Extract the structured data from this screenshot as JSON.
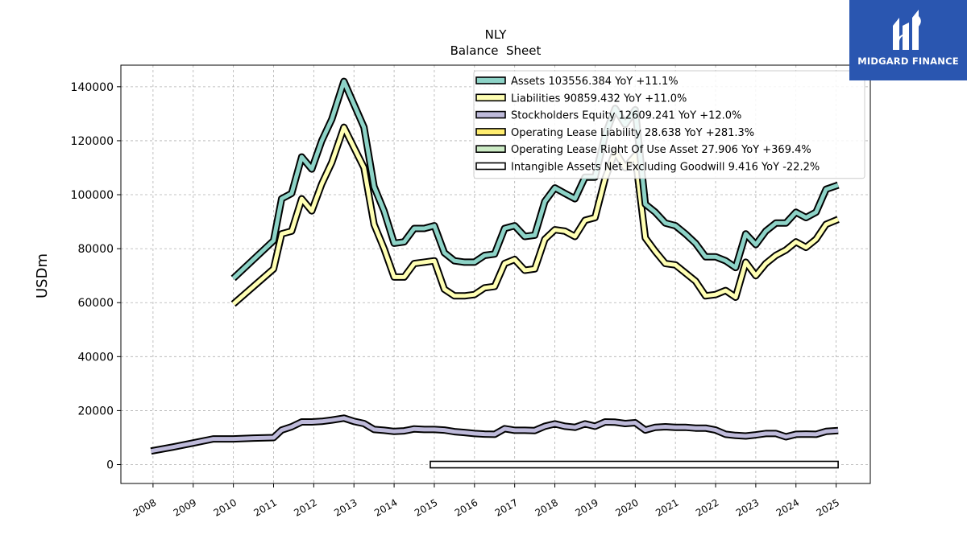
{
  "chart_data": {
    "type": "line",
    "title": "NLY",
    "subtitle": "Balance  Sheet",
    "xlabel": "",
    "ylabel": "USDm",
    "xlim": [
      2007.2,
      2025.85
    ],
    "ylim": [
      -7000,
      148000
    ],
    "grid": true,
    "legend_position": "top-right",
    "y_ticks": [
      0,
      20000,
      40000,
      60000,
      80000,
      100000,
      120000,
      140000
    ],
    "x_ticks": [
      "2008",
      "2009",
      "2010",
      "2011",
      "2012",
      "2013",
      "2014",
      "2015",
      "2016",
      "2017",
      "2018",
      "2019",
      "2020",
      "2021",
      "2022",
      "2023",
      "2024",
      "2025"
    ],
    "series": [
      {
        "name": "Assets  103556.384 YoY +11.1%",
        "color": "#8dd3c7",
        "x": [
          2010.0,
          2011.0,
          2011.2,
          2011.45,
          2011.7,
          2011.95,
          2012.2,
          2012.45,
          2012.75,
          2013.25,
          2013.5,
          2013.75,
          2014.0,
          2014.25,
          2014.5,
          2014.75,
          2015.0,
          2015.25,
          2015.5,
          2015.75,
          2016.0,
          2016.25,
          2016.5,
          2016.75,
          2017.0,
          2017.25,
          2017.5,
          2017.75,
          2018.0,
          2018.25,
          2018.5,
          2018.75,
          2019.0,
          2019.25,
          2019.5,
          2019.75,
          2020.0,
          2020.25,
          2020.5,
          2020.75,
          2021.0,
          2021.25,
          2021.5,
          2021.75,
          2022.0,
          2022.25,
          2022.5,
          2022.75,
          2023.0,
          2023.25,
          2023.5,
          2023.75,
          2024.0,
          2024.25,
          2024.5,
          2024.75,
          2025.05
        ],
        "values": [
          69000,
          83000,
          98500,
          100500,
          114000,
          109500,
          120000,
          128000,
          142000,
          125000,
          103000,
          94000,
          82000,
          82500,
          87500,
          87500,
          88500,
          78500,
          75500,
          75000,
          75000,
          77500,
          78000,
          87500,
          88500,
          84500,
          85000,
          97500,
          102500,
          100500,
          98500,
          106500,
          106500,
          122000,
          132000,
          126000,
          131500,
          96500,
          93500,
          89500,
          88500,
          85500,
          82000,
          77000,
          77000,
          75500,
          73000,
          85500,
          81500,
          86500,
          89500,
          89500,
          93500,
          91500,
          93500,
          102000,
          103556
        ]
      },
      {
        "name": "Liabilities  90859.432 YoY +11.0%",
        "color": "#ffffb3",
        "x": [
          2010.0,
          2011.0,
          2011.2,
          2011.45,
          2011.7,
          2011.95,
          2012.2,
          2012.45,
          2012.75,
          2013.25,
          2013.5,
          2013.75,
          2014.0,
          2014.25,
          2014.5,
          2014.75,
          2015.0,
          2015.25,
          2015.5,
          2015.75,
          2016.0,
          2016.25,
          2016.5,
          2016.75,
          2017.0,
          2017.25,
          2017.5,
          2017.75,
          2018.0,
          2018.25,
          2018.5,
          2018.75,
          2019.0,
          2019.25,
          2019.5,
          2019.75,
          2020.0,
          2020.25,
          2020.5,
          2020.75,
          2021.0,
          2021.25,
          2021.5,
          2021.75,
          2022.0,
          2022.25,
          2022.5,
          2022.75,
          2023.0,
          2023.25,
          2023.5,
          2023.75,
          2024.0,
          2024.25,
          2024.5,
          2024.75,
          2025.05
        ],
        "values": [
          59500,
          72500,
          85500,
          86500,
          98500,
          94000,
          104000,
          112000,
          125000,
          110000,
          89000,
          80000,
          69500,
          69500,
          74500,
          75000,
          75500,
          65000,
          62500,
          62500,
          63000,
          65500,
          66000,
          74500,
          76000,
          72000,
          72500,
          83500,
          87000,
          86500,
          84500,
          90500,
          91500,
          106000,
          116000,
          110000,
          114500,
          84000,
          79000,
          74500,
          74000,
          71000,
          68000,
          62500,
          63000,
          64500,
          62000,
          75000,
          70000,
          74500,
          77500,
          79500,
          82500,
          80500,
          83500,
          89000,
          90859
        ]
      },
      {
        "name": "Stockholders Equity  12609.241 YoY +12.0%",
        "color": "#bebada",
        "x": [
          2007.95,
          2008.5,
          2009.0,
          2009.5,
          2010.0,
          2010.5,
          2011.0,
          2011.2,
          2011.45,
          2011.7,
          2011.95,
          2012.2,
          2012.45,
          2012.75,
          2013.0,
          2013.25,
          2013.5,
          2013.75,
          2014.0,
          2014.25,
          2014.5,
          2014.75,
          2015.0,
          2015.25,
          2015.5,
          2015.75,
          2016.0,
          2016.25,
          2016.5,
          2016.75,
          2017.0,
          2017.25,
          2017.5,
          2017.75,
          2018.0,
          2018.25,
          2018.5,
          2018.75,
          2019.0,
          2019.25,
          2019.5,
          2019.75,
          2020.0,
          2020.25,
          2020.5,
          2020.75,
          2021.0,
          2021.25,
          2021.5,
          2021.75,
          2022.0,
          2022.25,
          2022.5,
          2022.75,
          2023.0,
          2023.25,
          2023.5,
          2023.75,
          2024.0,
          2024.25,
          2024.5,
          2024.75,
          2025.05
        ],
        "values": [
          5000,
          6500,
          8000,
          9500,
          9500,
          9800,
          10000,
          12800,
          14000,
          15800,
          15800,
          16000,
          16500,
          17200,
          16000,
          15200,
          13000,
          12700,
          12300,
          12500,
          13200,
          13000,
          13000,
          12800,
          12200,
          11900,
          11500,
          11300,
          11200,
          13300,
          12700,
          12700,
          12600,
          14200,
          15100,
          14200,
          13800,
          15100,
          14200,
          15800,
          15700,
          15200,
          15500,
          12800,
          13800,
          14000,
          13800,
          13800,
          13500,
          13500,
          12800,
          11200,
          10800,
          10600,
          11000,
          11500,
          11500,
          10300,
          11200,
          11300,
          11200,
          12300,
          12609
        ]
      },
      {
        "name": "Operating Lease Liability  28.638 YoY +281.3%",
        "color": "#ffed6f",
        "x": [],
        "values": []
      },
      {
        "name": "Operating Lease Right Of Use Asset  27.906 YoY +369.4%",
        "color": "#ccebc5",
        "x": [],
        "values": []
      },
      {
        "name": "Intangible Assets Net Excluding Goodwill  9.416 YoY -22.2%",
        "color": "#ffffff",
        "x": [
          2014.9,
          2025.05
        ],
        "values": [
          0,
          0
        ]
      }
    ]
  },
  "logo": {
    "text": "MIDGARD FINANCE",
    "background": "#2a56b0",
    "icon": "midgard-logo-icon"
  }
}
